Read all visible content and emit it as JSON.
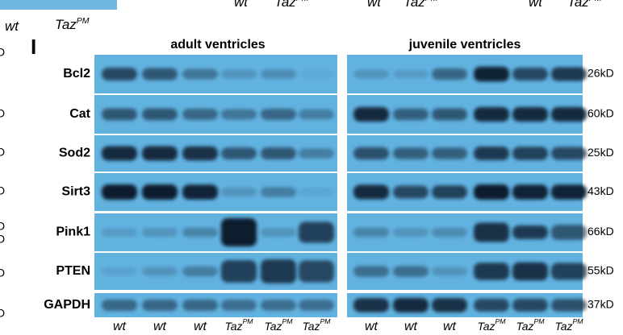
{
  "header": {
    "left": {
      "wt": "wt",
      "taz": "Taz",
      "sup": "PM"
    },
    "partials": [
      {
        "wt": "wt",
        "taz": "Taz",
        "sup": "PM"
      },
      {
        "wt": "wt",
        "taz": "Taz",
        "sup": "PM"
      },
      {
        "wt": "wt",
        "taz": "Taz",
        "sup": "PM"
      }
    ]
  },
  "panel": "I",
  "groups": [
    "adult ventricles",
    "juvenile ventricles"
  ],
  "rows": [
    {
      "label": "Bcl2",
      "size": "26kD"
    },
    {
      "label": "Cat",
      "size": "60kD"
    },
    {
      "label": "Sod2",
      "size": "25kD"
    },
    {
      "label": "Sirt3",
      "size": "43kD"
    },
    {
      "label": "Pink1",
      "size": "66kD"
    },
    {
      "label": "PTEN",
      "size": "55kD"
    },
    {
      "label": "GAPDH",
      "size": "37kD"
    }
  ],
  "lanes": [
    {
      "base": "wt"
    },
    {
      "base": "wt"
    },
    {
      "base": "wt"
    },
    {
      "base": "Taz",
      "sup": "PM"
    },
    {
      "base": "Taz",
      "sup": "PM"
    },
    {
      "base": "Taz",
      "sup": "PM"
    }
  ],
  "edge": [
    "D",
    "D",
    "D",
    "D",
    "D",
    "D",
    "D",
    "D"
  ]
}
